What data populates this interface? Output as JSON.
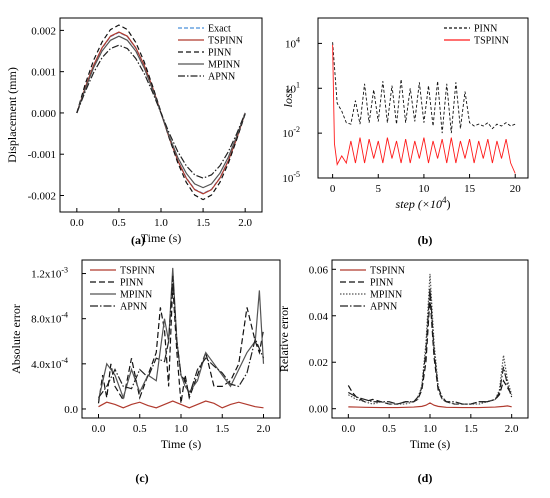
{
  "chart_data": [
    {
      "panel": "(a)",
      "type": "line",
      "xlabel": "Time (s)",
      "ylabel": "Displacement (mm)",
      "xlim": [
        -0.2,
        2.2
      ],
      "ylim": [
        -0.0024,
        0.0023
      ],
      "xticks": [
        0.0,
        0.5,
        1.0,
        1.5,
        2.0
      ],
      "xtick_labels": [
        "0.0",
        "0.5",
        "1.0",
        "1.5",
        "2.0"
      ],
      "yticks": [
        -0.002,
        -0.001,
        0.0,
        0.001,
        0.002
      ],
      "ytick_labels": [
        "-0.002",
        "-0.001",
        "0.000",
        "0.001",
        "0.002"
      ],
      "legend": "top-right",
      "series": [
        {
          "name": "Exact",
          "color": "#4a90d9",
          "dash": "4,2",
          "x": [
            0,
            0.1,
            0.2,
            0.3,
            0.4,
            0.5,
            0.6,
            0.7,
            0.8,
            0.9,
            1.0,
            1.1,
            1.2,
            1.3,
            1.4,
            1.5,
            1.6,
            1.7,
            1.8,
            1.9,
            2.0
          ],
          "y": [
            0,
            0.00061,
            0.00115,
            0.00157,
            0.00185,
            0.00195,
            0.00185,
            0.00157,
            0.00115,
            0.00061,
            0,
            -0.00061,
            -0.00115,
            -0.00157,
            -0.00185,
            -0.00195,
            -0.00185,
            -0.00157,
            -0.00115,
            -0.00061,
            0
          ]
        },
        {
          "name": "TSPINN",
          "color": "#b03a2e",
          "dash": "",
          "x": [
            0,
            0.1,
            0.2,
            0.3,
            0.4,
            0.5,
            0.6,
            0.7,
            0.8,
            0.9,
            1.0,
            1.1,
            1.2,
            1.3,
            1.4,
            1.5,
            1.6,
            1.7,
            1.8,
            1.9,
            2.0
          ],
          "y": [
            0,
            0.00062,
            0.00116,
            0.00158,
            0.00186,
            0.00196,
            0.00186,
            0.00158,
            0.00116,
            0.00062,
            0,
            -0.00062,
            -0.00116,
            -0.00158,
            -0.00186,
            -0.00196,
            -0.00186,
            -0.00158,
            -0.00116,
            -0.00062,
            0
          ]
        },
        {
          "name": "PINN",
          "color": "#111111",
          "dash": "5,3",
          "x": [
            0,
            0.1,
            0.2,
            0.3,
            0.4,
            0.5,
            0.6,
            0.7,
            0.8,
            0.9,
            1.0,
            1.1,
            1.2,
            1.3,
            1.4,
            1.5,
            1.6,
            1.7,
            1.8,
            1.9,
            2.0
          ],
          "y": [
            0,
            0.0007,
            0.00128,
            0.00172,
            0.00202,
            0.00213,
            0.00202,
            0.00171,
            0.00124,
            0.00065,
            2e-05,
            -0.00062,
            -0.00121,
            -0.00168,
            -0.00199,
            -0.0021,
            -0.00199,
            -0.00168,
            -0.00122,
            -0.00064,
            -2e-05
          ]
        },
        {
          "name": "MPINN",
          "color": "#555555",
          "dash": "",
          "x": [
            0,
            0.1,
            0.2,
            0.3,
            0.4,
            0.5,
            0.6,
            0.7,
            0.8,
            0.9,
            1.0,
            1.1,
            1.2,
            1.3,
            1.4,
            1.5,
            1.6,
            1.7,
            1.8,
            1.9,
            2.0
          ],
          "y": [
            0,
            0.00058,
            0.0011,
            0.0015,
            0.00176,
            0.00186,
            0.00176,
            0.0015,
            0.00109,
            0.00057,
            -1e-05,
            -0.00058,
            -0.00108,
            -0.00146,
            -0.00172,
            -0.00181,
            -0.00172,
            -0.00146,
            -0.00107,
            -0.00056,
            0
          ]
        },
        {
          "name": "APNN",
          "color": "#222222",
          "dash": "7,2,1.5,2",
          "x": [
            0,
            0.1,
            0.2,
            0.3,
            0.4,
            0.5,
            0.6,
            0.7,
            0.8,
            0.9,
            1.0,
            1.1,
            1.2,
            1.3,
            1.4,
            1.5,
            1.6,
            1.7,
            1.8,
            1.9,
            2.0
          ],
          "y": [
            0,
            0.00052,
            0.00098,
            0.00134,
            0.00156,
            0.00164,
            0.00156,
            0.00132,
            0.00096,
            0.0005,
            0,
            -0.0005,
            -0.00094,
            -0.00128,
            -0.0015,
            -0.00158,
            -0.0015,
            -0.00128,
            -0.00094,
            -0.0005,
            0
          ]
        }
      ]
    },
    {
      "panel": "(b)",
      "type": "line",
      "xlabel": "step (×10",
      "xlabel_sup": "4",
      "xlabel_close": ")",
      "ylabel": "loss",
      "yscale": "log",
      "xlim": [
        -1.6,
        21.4
      ],
      "ylim": [
        1e-05,
        500000
      ],
      "xticks": [
        0,
        5,
        10,
        15,
        20
      ],
      "xtick_labels": [
        "0",
        "5",
        "10",
        "15",
        "20"
      ],
      "yticks": [
        1e-05,
        0.01,
        10,
        10000
      ],
      "ytick_base": [
        "10",
        "10",
        "10",
        "10"
      ],
      "ytick_exp": [
        "-5",
        "-2",
        "1",
        "4"
      ],
      "legend": "top-right",
      "series": [
        {
          "name": "PINN",
          "color": "#111111",
          "dash": "3,2",
          "x": [
            0,
            0.2,
            0.5,
            1,
            1.5,
            2,
            2.5,
            3,
            3.5,
            4,
            4.5,
            5,
            5.5,
            6,
            6.5,
            7,
            7.5,
            8,
            8.5,
            9,
            9.5,
            10,
            10.5,
            11,
            11.5,
            12,
            12.5,
            13,
            13.5,
            14,
            14.5,
            15,
            15.5,
            16,
            16.5,
            17,
            17.5,
            18,
            18.5,
            19,
            19.5,
            20
          ],
          "y": [
            12000,
            300,
            1,
            0.3,
            0.05,
            0.04,
            1.5,
            0.04,
            20,
            0.05,
            8,
            0.06,
            30,
            0.05,
            15,
            0.04,
            40,
            0.05,
            10,
            0.06,
            25,
            0.05,
            15,
            0.03,
            30,
            0.01,
            20,
            0.01,
            25,
            0.02,
            6,
            0.05,
            0.03,
            0.04,
            0.03,
            0.05,
            0.02,
            0.04,
            0.03,
            0.05,
            0.03,
            0.04
          ]
        },
        {
          "name": "TSPINN",
          "color": "#ff1a1a",
          "dash": "",
          "x": [
            0,
            0.2,
            0.5,
            1,
            1.5,
            2,
            2.5,
            3,
            3.5,
            4,
            4.5,
            5,
            5.5,
            6,
            6.5,
            7,
            7.5,
            8,
            8.5,
            9,
            9.5,
            10,
            10.5,
            11,
            11.5,
            12,
            12.5,
            13,
            13.5,
            14,
            14.5,
            15,
            15.5,
            16,
            16.5,
            17,
            17.5,
            18,
            18.5,
            19,
            19.5,
            20
          ],
          "y": [
            8000,
            0.002,
            8e-05,
            0.0003,
            0.0001,
            0.003,
            0.0001,
            0.005,
            0.0001,
            0.004,
            0.0002,
            0.003,
            0.0001,
            0.005,
            0.0002,
            0.003,
            0.0001,
            0.004,
            0.0001,
            0.003,
            0.0002,
            0.005,
            0.0001,
            0.003,
            0.0002,
            0.004,
            0.0001,
            0.005,
            0.0001,
            0.003,
            0.0002,
            0.004,
            0.0001,
            0.003,
            0.0002,
            0.004,
            0.0001,
            0.003,
            0.0002,
            0.004,
            0.0001,
            2e-05
          ]
        }
      ]
    },
    {
      "panel": "(c)",
      "type": "line",
      "xlabel": "Time (s)",
      "ylabel": "Absolute error",
      "xlim": [
        -0.2,
        2.2
      ],
      "ylim": [
        -8e-05,
        0.00132
      ],
      "xticks": [
        0.0,
        0.5,
        1.0,
        1.5,
        2.0
      ],
      "xtick_labels": [
        "0.0",
        "0.5",
        "1.0",
        "1.5",
        "2.0"
      ],
      "yticks": [
        0.0,
        0.0004,
        0.0008,
        0.0012
      ],
      "ytick_labels": [
        "0.0",
        "4.0x10",
        "8.0x10",
        "1.2x10"
      ],
      "ytick_exp": [
        "",
        "-4",
        "-4",
        "-3"
      ],
      "legend": "top-left",
      "series": [
        {
          "name": "TSPINN",
          "color": "#b03a2e",
          "dash": "",
          "x": [
            0,
            0.1,
            0.2,
            0.3,
            0.4,
            0.5,
            0.6,
            0.7,
            0.8,
            0.9,
            1.0,
            1.1,
            1.2,
            1.3,
            1.4,
            1.5,
            1.6,
            1.7,
            1.8,
            1.9,
            2.0
          ],
          "y": [
            2e-05,
            6e-05,
            4e-05,
            1e-05,
            4e-05,
            6e-05,
            3e-05,
            1e-05,
            4e-05,
            7e-05,
            4e-05,
            1e-05,
            4e-05,
            7e-05,
            5e-05,
            1e-05,
            4e-05,
            6e-05,
            4e-05,
            2e-05,
            1e-05
          ]
        },
        {
          "name": "PINN",
          "color": "#111111",
          "dash": "6,3",
          "x": [
            0,
            0.05,
            0.1,
            0.15,
            0.2,
            0.3,
            0.4,
            0.5,
            0.6,
            0.7,
            0.75,
            0.8,
            0.85,
            0.9,
            0.95,
            1.0,
            1.05,
            1.1,
            1.2,
            1.3,
            1.4,
            1.5,
            1.6,
            1.7,
            1.8,
            1.9,
            1.95,
            2.0
          ],
          "y": [
            5e-05,
            0.0003,
            0.0001,
            0.0004,
            0.0002,
            8e-05,
            0.00045,
            0.0001,
            0.0003,
            0.0005,
            0.0009,
            0.0007,
            0.0002,
            0.0011,
            0.0005,
            5e-05,
            0.0003,
            0.0001,
            0.0003,
            0.0005,
            0.0002,
            0.0002,
            0.00025,
            0.0004,
            0.0009,
            0.0006,
            0.0005,
            0.0007
          ]
        },
        {
          "name": "MPINN",
          "color": "#555555",
          "dash": "",
          "x": [
            0,
            0.1,
            0.2,
            0.3,
            0.4,
            0.5,
            0.6,
            0.7,
            0.8,
            0.85,
            0.9,
            0.95,
            1.0,
            1.05,
            1.1,
            1.2,
            1.3,
            1.4,
            1.5,
            1.6,
            1.7,
            1.8,
            1.9,
            1.95,
            2.0
          ],
          "y": [
            8e-05,
            0.0004,
            0.0003,
            0.0001,
            0.00035,
            0.00015,
            0.0003,
            0.00025,
            0.0008,
            0.0006,
            0.00125,
            0.0006,
            0.0003,
            0.0002,
            0.00015,
            0.00025,
            0.0005,
            0.0004,
            0.0003,
            0.0002,
            0.00035,
            0.0005,
            0.0006,
            0.00105,
            0.0004
          ]
        },
        {
          "name": "APNN",
          "color": "#222222",
          "dash": "8,2,1.5,2",
          "x": [
            0,
            0.1,
            0.2,
            0.3,
            0.4,
            0.5,
            0.6,
            0.7,
            0.8,
            0.85,
            0.9,
            0.95,
            1.0,
            1.05,
            1.1,
            1.2,
            1.3,
            1.4,
            1.5,
            1.6,
            1.7,
            1.8,
            1.9,
            2.0
          ],
          "y": [
            0.0001,
            0.0002,
            0.00035,
            0.0002,
            0.00018,
            0.00035,
            0.00028,
            0.00045,
            0.00042,
            0.0006,
            0.00118,
            0.0006,
            0.0003,
            0.00025,
            0.00012,
            0.00035,
            0.00045,
            0.00038,
            0.00032,
            0.00022,
            0.0002,
            0.00032,
            0.00062,
            0.00045
          ]
        }
      ]
    },
    {
      "panel": "(d)",
      "type": "line",
      "xlabel": "Time (s)",
      "ylabel": "Relative error",
      "xlim": [
        -0.2,
        2.2
      ],
      "ylim": [
        -0.004,
        0.064
      ],
      "xticks": [
        0.0,
        0.5,
        1.0,
        1.5,
        2.0
      ],
      "xtick_labels": [
        "0.0",
        "0.5",
        "1.0",
        "1.5",
        "2.0"
      ],
      "yticks": [
        0.0,
        0.02,
        0.04,
        0.06
      ],
      "ytick_labels": [
        "0.00",
        "0.02",
        "0.04",
        "0.06"
      ],
      "legend": "top-left",
      "series": [
        {
          "name": "TSPINN",
          "color": "#b03a2e",
          "dash": "",
          "x": [
            0,
            0.1,
            0.2,
            0.4,
            0.6,
            0.8,
            0.9,
            0.95,
            1.0,
            1.05,
            1.1,
            1.2,
            1.4,
            1.6,
            1.8,
            1.9,
            1.95,
            2.0
          ],
          "y": [
            0.0008,
            0.0007,
            0.0006,
            0.0005,
            0.0005,
            0.0007,
            0.001,
            0.0015,
            0.0025,
            0.0015,
            0.001,
            0.0006,
            0.0005,
            0.0005,
            0.0007,
            0.001,
            0.0012,
            0.0008
          ]
        },
        {
          "name": "PINN",
          "color": "#111111",
          "dash": "6,3",
          "x": [
            0,
            0.05,
            0.1,
            0.2,
            0.3,
            0.4,
            0.5,
            0.6,
            0.7,
            0.8,
            0.85,
            0.9,
            0.95,
            1.0,
            1.05,
            1.1,
            1.15,
            1.2,
            1.3,
            1.4,
            1.5,
            1.6,
            1.7,
            1.8,
            1.85,
            1.9,
            1.95,
            2.0
          ],
          "y": [
            0.01,
            0.007,
            0.005,
            0.003,
            0.004,
            0.003,
            0.002,
            0.002,
            0.003,
            0.003,
            0.004,
            0.008,
            0.02,
            0.048,
            0.022,
            0.008,
            0.004,
            0.003,
            0.002,
            0.002,
            0.002,
            0.003,
            0.003,
            0.004,
            0.006,
            0.012,
            0.009,
            0.006
          ]
        },
        {
          "name": "MPINN",
          "color": "#555555",
          "dash": "1.5,1.5",
          "x": [
            0,
            0.05,
            0.1,
            0.2,
            0.3,
            0.4,
            0.5,
            0.6,
            0.7,
            0.8,
            0.85,
            0.9,
            0.95,
            1.0,
            1.05,
            1.1,
            1.15,
            1.2,
            1.3,
            1.4,
            1.5,
            1.6,
            1.7,
            1.8,
            1.85,
            1.9,
            1.95,
            2.0
          ],
          "y": [
            0.006,
            0.005,
            0.004,
            0.003,
            0.002,
            0.003,
            0.002,
            0.002,
            0.002,
            0.003,
            0.004,
            0.01,
            0.028,
            0.058,
            0.028,
            0.01,
            0.004,
            0.003,
            0.002,
            0.002,
            0.002,
            0.002,
            0.003,
            0.004,
            0.008,
            0.023,
            0.012,
            0.006
          ]
        },
        {
          "name": "APNN",
          "color": "#222222",
          "dash": "8,2,1.5,2",
          "x": [
            0,
            0.05,
            0.1,
            0.2,
            0.3,
            0.4,
            0.5,
            0.6,
            0.7,
            0.8,
            0.85,
            0.9,
            0.95,
            1.0,
            1.05,
            1.1,
            1.15,
            1.2,
            1.3,
            1.4,
            1.5,
            1.6,
            1.7,
            1.8,
            1.85,
            1.9,
            1.95,
            2.0
          ],
          "y": [
            0.007,
            0.006,
            0.005,
            0.004,
            0.003,
            0.003,
            0.003,
            0.002,
            0.003,
            0.003,
            0.005,
            0.009,
            0.025,
            0.052,
            0.025,
            0.009,
            0.005,
            0.003,
            0.003,
            0.002,
            0.002,
            0.003,
            0.003,
            0.004,
            0.007,
            0.018,
            0.01,
            0.005
          ]
        }
      ]
    }
  ]
}
